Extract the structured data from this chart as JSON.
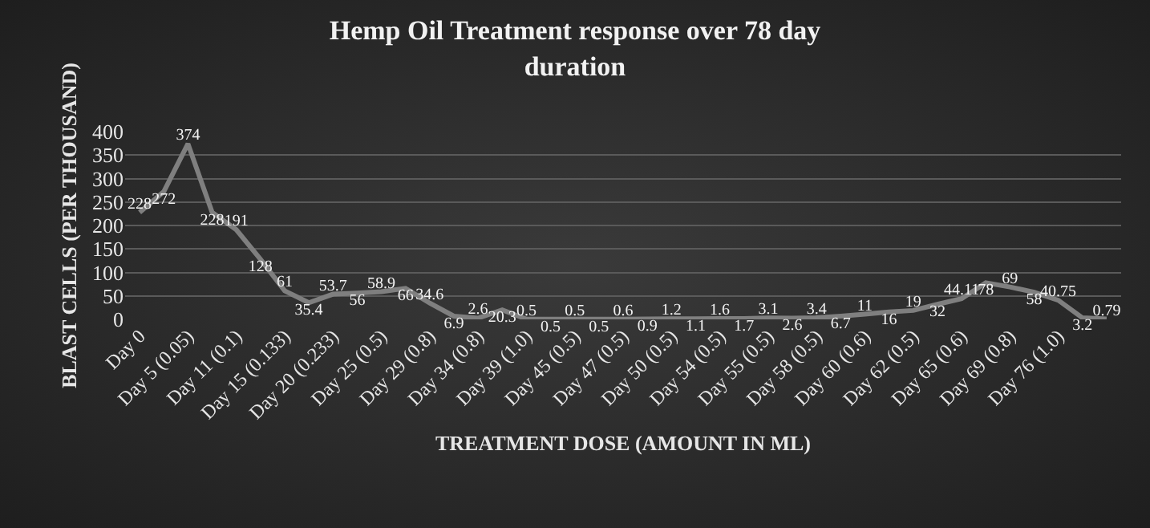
{
  "chart_data": {
    "type": "line",
    "title": "Hemp Oil Treatment response over 78 day duration",
    "xlabel": "TREATMENT DOSE (AMOUNT IN ML)",
    "ylabel": "BLAST CELLS (PER THOUSAND)",
    "categories": [
      "Day 0",
      null,
      "Day 5 (0.05)",
      null,
      "Day 11 (0.1)",
      null,
      "Day 15 (0.133)",
      null,
      "Day 20 (0.233)",
      null,
      "Day 25 (0.5)",
      null,
      "Day 29 (0.8)",
      null,
      "Day 34 (0.8)",
      null,
      "Day 39 (1.0)",
      null,
      "Day 45 (0.5)",
      null,
      "Day 47 (0.5)",
      null,
      "Day 50 (0.5)",
      null,
      "Day 54 (0.5)",
      null,
      "Day 55 (0.5)",
      null,
      "Day 58 (0.5)",
      null,
      "Day 60 (0.6)",
      null,
      "Day 62 (0.5)",
      null,
      "Day 65 (0.6)",
      null,
      "Day 69 (0.8)",
      null,
      "Day 76 (1.0)",
      null,
      null
    ],
    "series": [
      {
        "color": "#7f7f7f",
        "values": [
          228,
          272,
          374,
          228,
          191,
          128,
          61,
          35.4,
          53.7,
          56,
          58.9,
          66,
          34.6,
          6.9,
          2.6,
          20.3,
          0.5,
          0.5,
          0.5,
          0.5,
          0.6,
          0.9,
          1.2,
          1.1,
          1.6,
          1.7,
          3.1,
          2.6,
          3.4,
          6.7,
          11,
          16,
          19,
          32,
          44.11,
          78,
          69,
          58,
          40.75,
          3.2,
          0.79
        ]
      }
    ],
    "ylim": [
      0,
      400
    ],
    "yticks": [
      0,
      50,
      100,
      150,
      200,
      250,
      300,
      350,
      400
    ],
    "grid": "y",
    "marker": "none",
    "line_style": "solid",
    "data_labels": true
  }
}
